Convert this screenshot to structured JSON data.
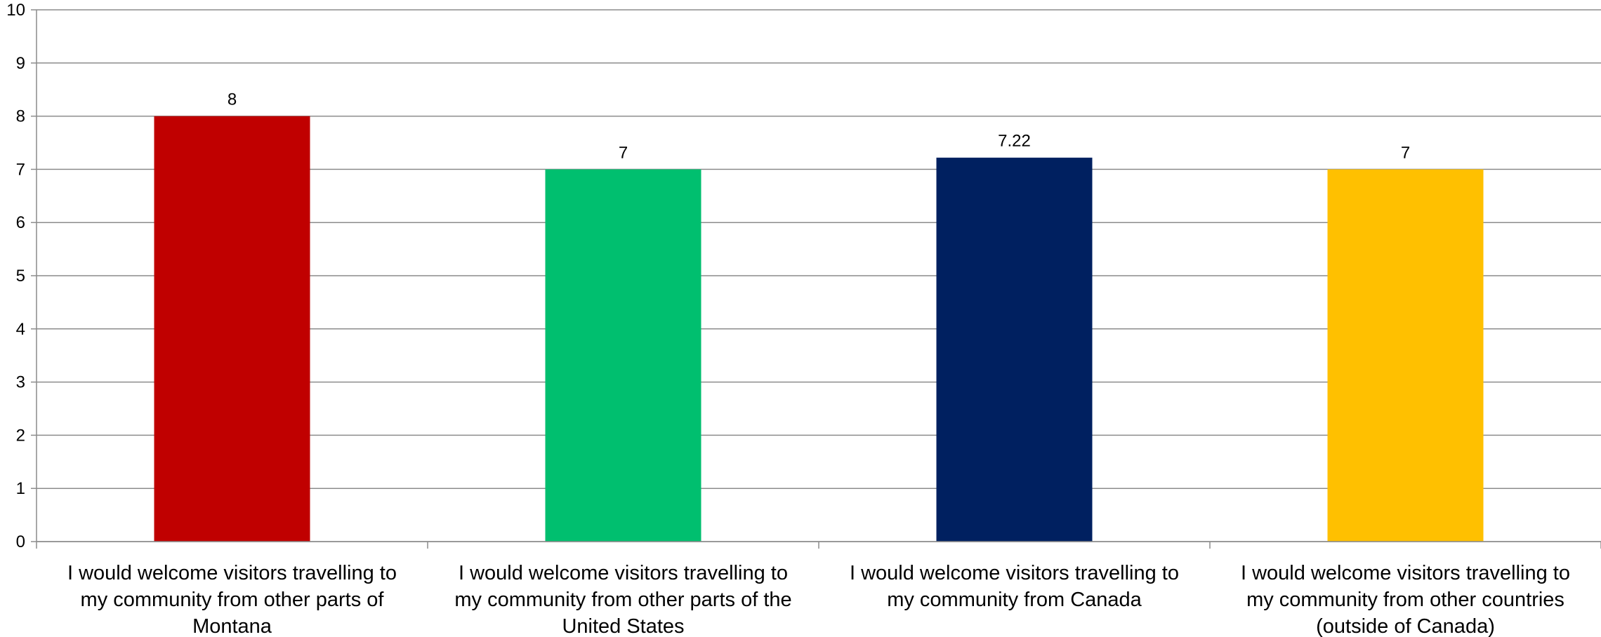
{
  "chart_data": {
    "type": "bar",
    "categories": [
      [
        "I would welcome visitors travelling to",
        "my community from other parts of",
        "Montana"
      ],
      [
        "I would welcome visitors travelling to",
        "my community from other parts of the",
        "United States"
      ],
      [
        "I would welcome visitors travelling to",
        "my community from Canada"
      ],
      [
        "I would welcome visitors travelling to",
        "my community from other countries",
        "(outside of Canada)"
      ]
    ],
    "values": [
      8,
      7,
      7.22,
      7
    ],
    "data_labels": [
      "8",
      "7",
      "7.22",
      "7"
    ],
    "colors": [
      "#c00000",
      "#00bf6f",
      "#002060",
      "#ffc000"
    ],
    "ylim": [
      0,
      10
    ],
    "yticks": [
      0,
      1,
      2,
      3,
      4,
      5,
      6,
      7,
      8,
      9,
      10
    ],
    "grid": true,
    "title": "",
    "xlabel": "",
    "ylabel": ""
  }
}
